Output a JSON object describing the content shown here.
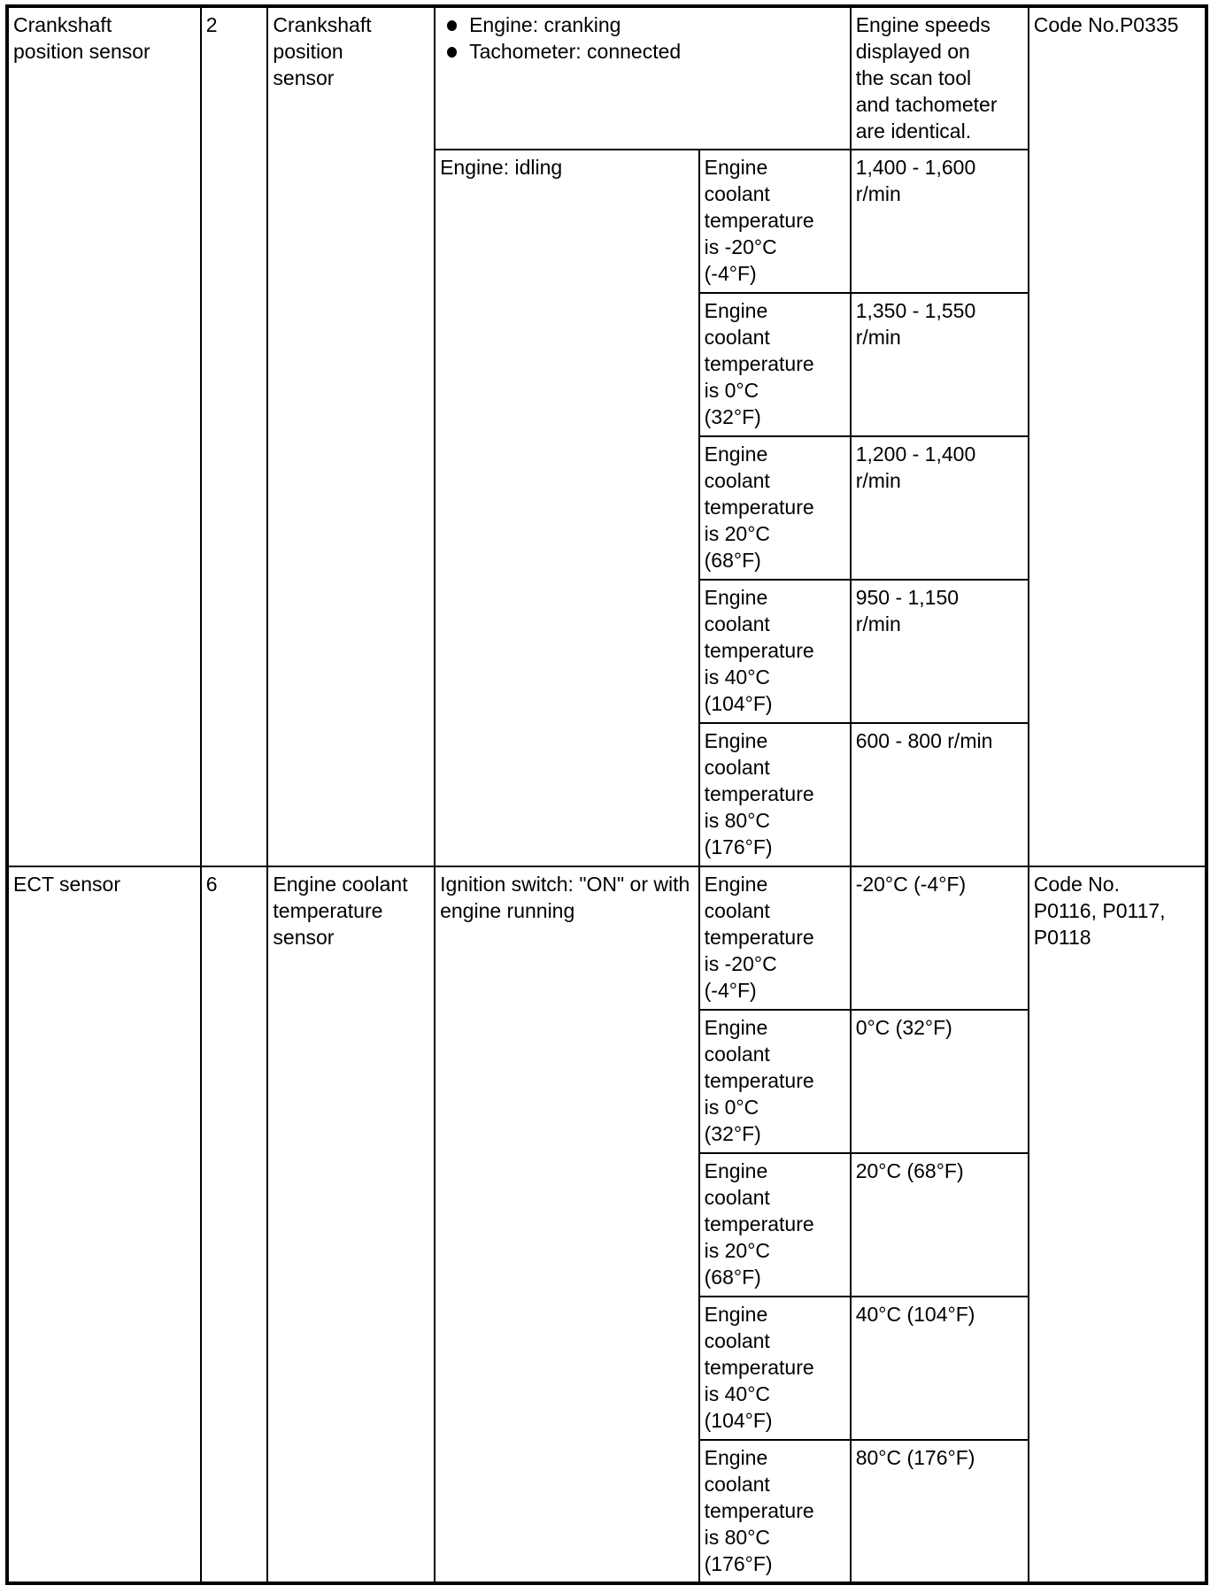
{
  "rows": [
    {
      "item": "Crankshaft\nposition sensor",
      "no": "2",
      "name": "Crankshaft\nposition\nsensor",
      "check_conditions": [
        {
          "bullets": [
            "Engine: cranking",
            "Tachometer: connected"
          ],
          "normal": "Engine speeds\ndisplayed on\nthe scan tool\nand tachometer\nare identical."
        },
        {
          "state": "Engine: idling",
          "sub": [
            {
              "condition": "Engine\ncoolant\ntemperature\nis -20°C\n(-4°F)",
              "normal": "1,400 - 1,600\nr/min"
            },
            {
              "condition": "Engine\ncoolant\ntemperature\nis 0°C\n(32°F)",
              "normal": "1,350 - 1,550\nr/min"
            },
            {
              "condition": "Engine\ncoolant\ntemperature\nis 20°C\n(68°F)",
              "normal": "1,200 - 1,400\nr/min"
            },
            {
              "condition": "Engine\ncoolant\ntemperature\nis 40°C\n(104°F)",
              "normal": "950 - 1,150\nr/min"
            },
            {
              "condition": "Engine\ncoolant\ntemperature\nis 80°C\n(176°F)",
              "normal": "600 - 800 r/min"
            }
          ]
        }
      ],
      "code": "Code No.P0335"
    },
    {
      "item": "ECT sensor",
      "no": "6",
      "name": "Engine coolant\ntemperature\nsensor",
      "check_conditions": [
        {
          "state": "Ignition switch: \"ON\" or with\nengine running",
          "sub": [
            {
              "condition": "Engine\ncoolant\ntemperature\nis -20°C\n(-4°F)",
              "normal": "-20°C (-4°F)"
            },
            {
              "condition": "Engine\ncoolant\ntemperature\nis 0°C\n(32°F)",
              "normal": "0°C (32°F)"
            },
            {
              "condition": "Engine\ncoolant\ntemperature\nis 20°C\n(68°F)",
              "normal": "20°C (68°F)"
            },
            {
              "condition": "Engine\ncoolant\ntemperature\nis 40°C\n(104°F)",
              "normal": "40°C (104°F)"
            },
            {
              "condition": "Engine\ncoolant\ntemperature\nis 80°C\n(176°F)",
              "normal": "80°C (176°F)"
            }
          ]
        }
      ],
      "code": "Code No.\nP0116, P0117,\nP0118"
    }
  ]
}
